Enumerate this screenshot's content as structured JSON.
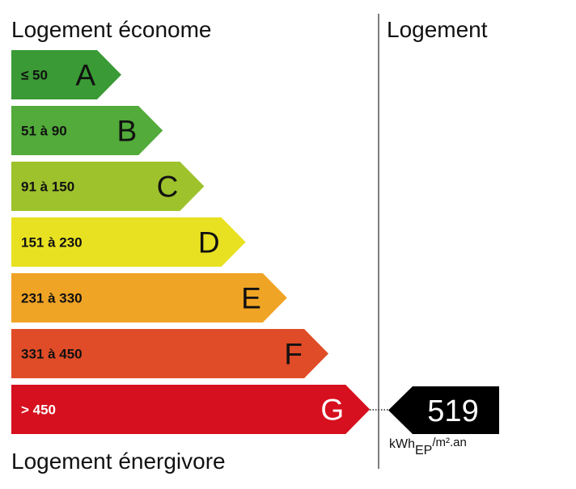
{
  "header": {
    "top_left": "Logement économe",
    "top_right": "Logement",
    "bottom_left": "Logement énergivore"
  },
  "classes": [
    {
      "range": "≤ 50",
      "letter": "A",
      "color": "#3a9a35"
    },
    {
      "range": "51 à 90",
      "letter": "B",
      "color": "#52ab3a"
    },
    {
      "range": "91 à 150",
      "letter": "C",
      "color": "#9ec22c"
    },
    {
      "range": "151 à 230",
      "letter": "D",
      "color": "#e8e121"
    },
    {
      "range": "231 à 330",
      "letter": "E",
      "color": "#f0a425"
    },
    {
      "range": "331 à 450",
      "letter": "F",
      "color": "#e04c27"
    },
    {
      "range": "> 450",
      "letter": "G",
      "color": "#d6101e"
    }
  ],
  "indicator": {
    "value": "519",
    "unit_main": "kWh",
    "unit_sub": "EP",
    "unit_rest": "/m².an"
  }
}
